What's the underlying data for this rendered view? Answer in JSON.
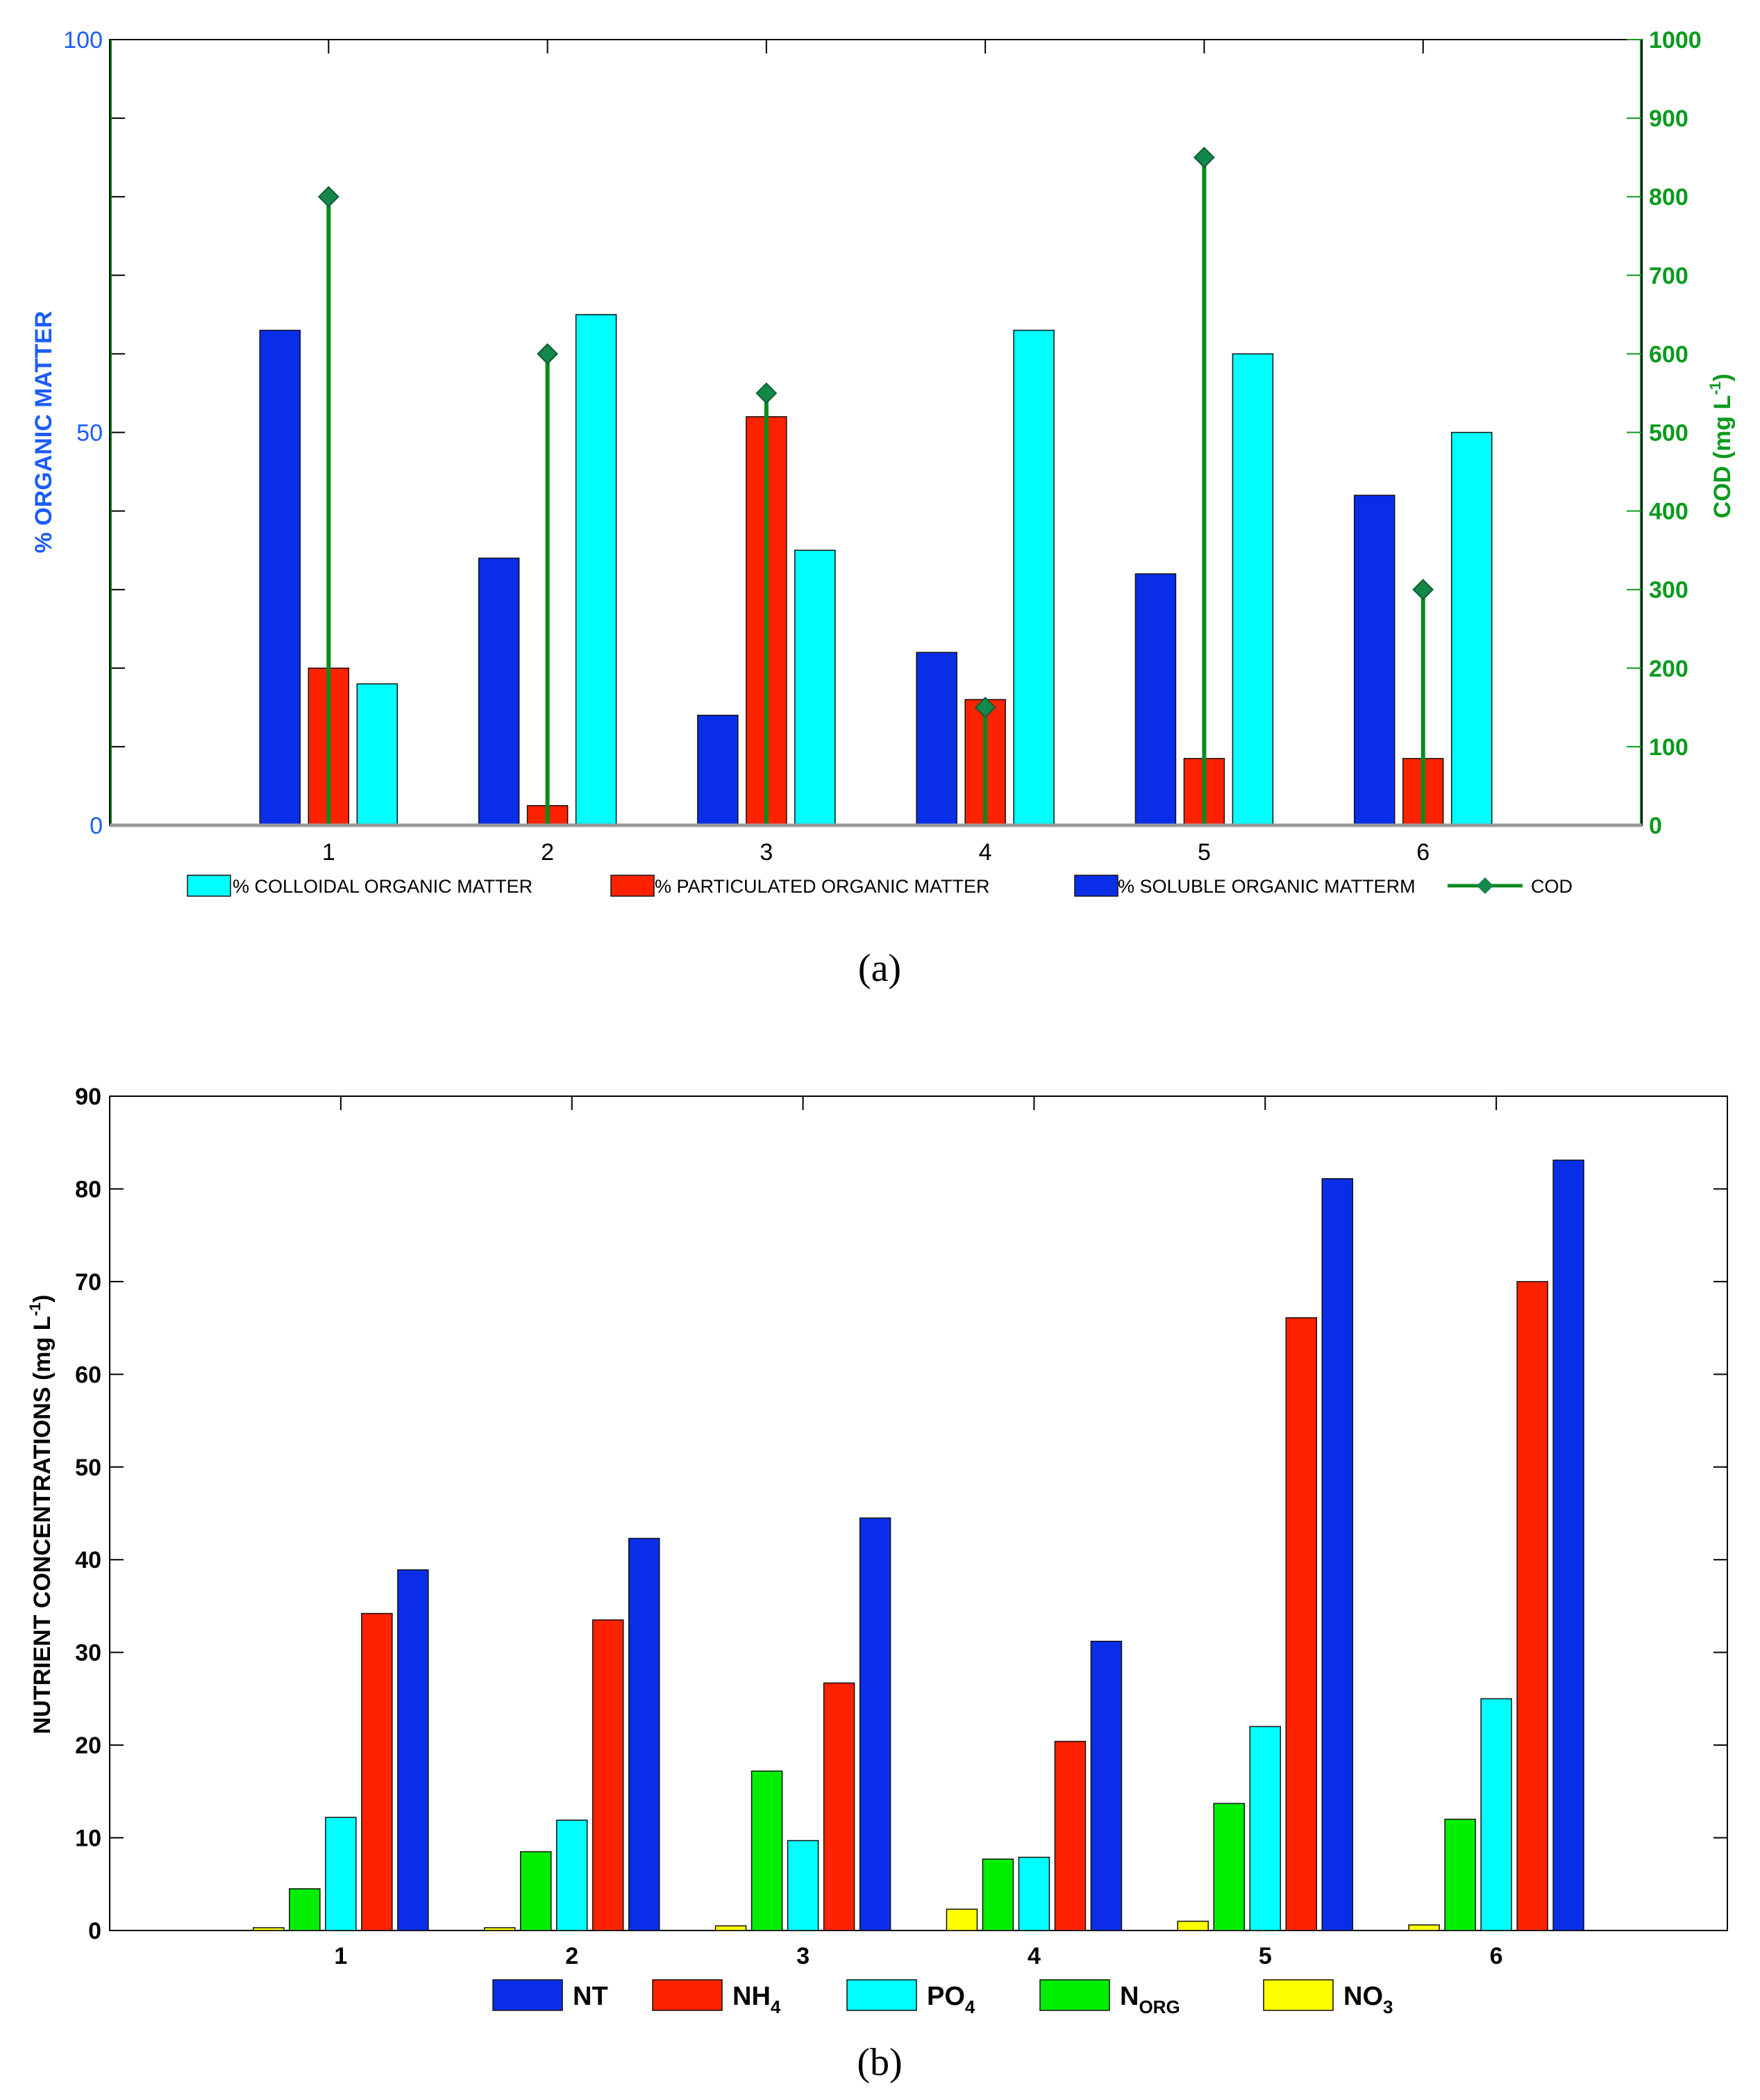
{
  "colors": {
    "soluble": "#0a2ee8",
    "particulated": "#ff2200",
    "colloidal": "#00ffff",
    "cod": "#0a8a1e",
    "cod_marker": "#14874a",
    "nt": "#0a2ee8",
    "nh4": "#ff2200",
    "po4": "#00ffff",
    "norg": "#00ee00",
    "no3": "#ffff00",
    "left_axis_a": "#1a5cff",
    "right_axis_a": "#0a9a1e"
  },
  "captions": {
    "a": "(a)",
    "b": "(b)"
  },
  "chart_data": [
    {
      "id": "a",
      "type": "bar",
      "categories": [
        "1",
        "2",
        "3",
        "4",
        "5",
        "6"
      ],
      "ylabel": "% ORGANIC MATTER",
      "ylim": [
        0,
        100
      ],
      "yticks": [
        "0",
        "50",
        "100"
      ],
      "ylabel_right": "COD (mg L",
      "ylabel_right_sup": "-1",
      "ylabel_right_close": ")",
      "ylim_right": [
        0,
        1000
      ],
      "yticks_right": [
        "0",
        "100",
        "200",
        "300",
        "400",
        "500",
        "600",
        "700",
        "800",
        "900",
        "1000"
      ],
      "series": [
        {
          "name": "% SOLUBLE ORGANIC MATTERM",
          "key": "soluble",
          "values": [
            63,
            34,
            14,
            22,
            32,
            42
          ]
        },
        {
          "name": "% PARTICULATED ORGANIC MATTER",
          "key": "particulated",
          "values": [
            20,
            2.5,
            52,
            16,
            8.5,
            8.5
          ]
        },
        {
          "name": "% COLLOIDAL ORGANIC MATTER",
          "key": "colloidal",
          "values": [
            18,
            65,
            35,
            63,
            60,
            50
          ]
        }
      ],
      "line_series": {
        "name": "COD",
        "axis": "right",
        "values": [
          800,
          600,
          550,
          150,
          850,
          300
        ]
      },
      "legend_order": [
        "% COLLOIDAL ORGANIC MATTER",
        "% PARTICULATED ORGANIC MATTER",
        "% SOLUBLE ORGANIC MATTERM",
        "COD"
      ]
    },
    {
      "id": "b",
      "type": "bar",
      "categories": [
        "1",
        "2",
        "3",
        "4",
        "5",
        "6"
      ],
      "ylabel": "NUTRIENT CONCENTRATIONS (mg L",
      "ylabel_sup": "-1",
      "ylabel_close": ")",
      "ylim": [
        0,
        90
      ],
      "yticks": [
        "0",
        "10",
        "20",
        "30",
        "40",
        "50",
        "60",
        "70",
        "80",
        "90"
      ],
      "series": [
        {
          "name": "NO",
          "sub": "3",
          "key": "no3",
          "values": [
            0.3,
            0.3,
            0.5,
            2.3,
            1.0,
            0.6
          ]
        },
        {
          "name": "N",
          "sub": "ORG",
          "key": "norg",
          "values": [
            4.5,
            8.5,
            17.2,
            7.7,
            13.7,
            12.0
          ]
        },
        {
          "name": "PO",
          "sub": "4",
          "key": "po4",
          "values": [
            12.2,
            11.9,
            9.7,
            7.9,
            22.0,
            25.0
          ]
        },
        {
          "name": "NH",
          "sub": "4",
          "key": "nh4",
          "values": [
            34.2,
            33.5,
            26.7,
            20.4,
            66.1,
            70.0
          ]
        },
        {
          "name": "NT",
          "sub": "",
          "key": "nt",
          "values": [
            38.9,
            42.3,
            44.5,
            31.2,
            81.1,
            83.1
          ]
        }
      ],
      "legend_order": [
        "nt",
        "nh4",
        "po4",
        "norg",
        "no3"
      ]
    }
  ]
}
